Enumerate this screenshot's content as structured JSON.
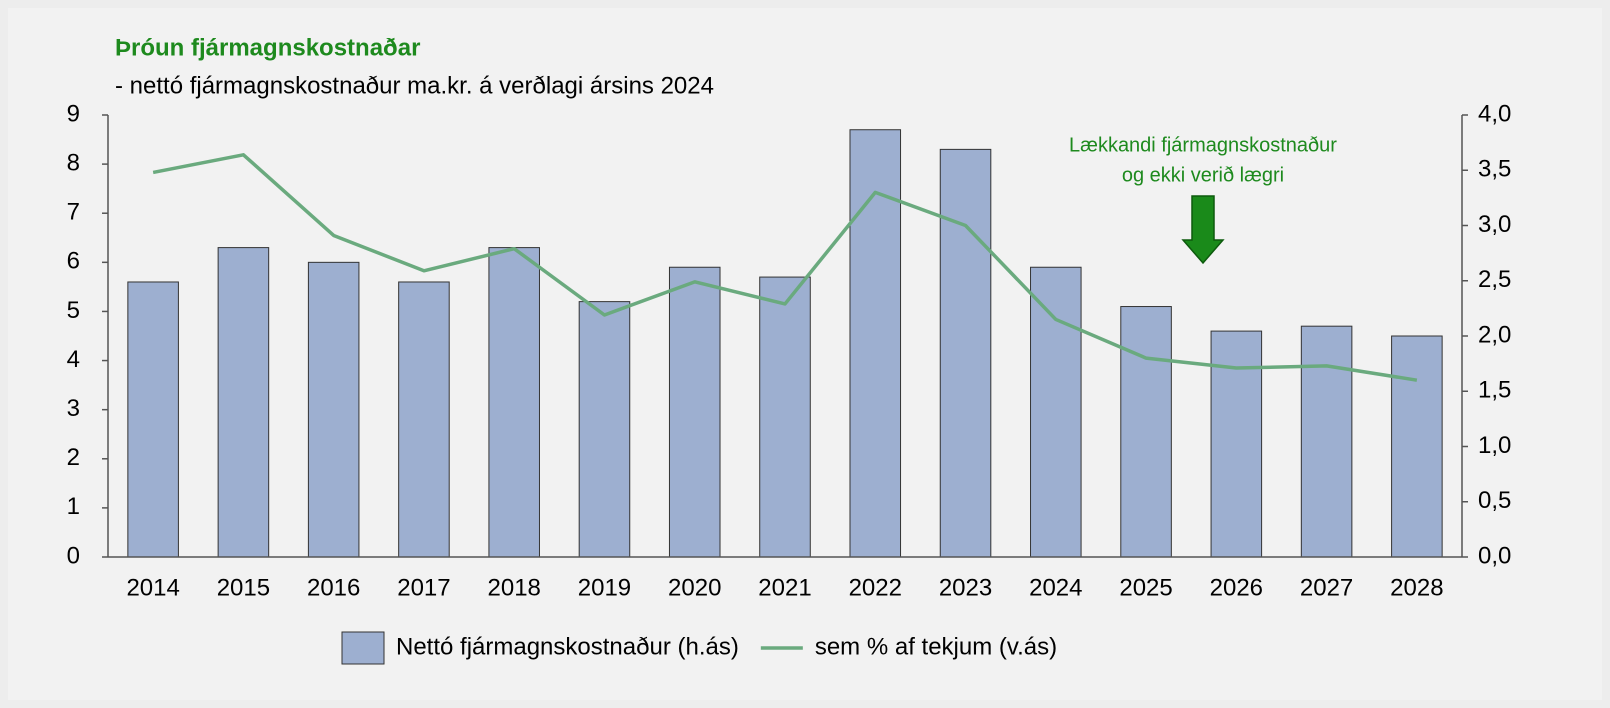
{
  "chart_data": {
    "type": "bar-line",
    "title": "Þróun fjármagnskostnaðar",
    "subtitle": "- nettó fjármagnskostnaður ma.kr. á verðlagi ársins 2024",
    "annotation": [
      "Lækkandi fjármagnskostnaður",
      "og ekki verið lægri"
    ],
    "categories": [
      "2014",
      "2015",
      "2016",
      "2017",
      "2018",
      "2019",
      "2020",
      "2021",
      "2022",
      "2023",
      "2024",
      "2025",
      "2026",
      "2027",
      "2028"
    ],
    "series": [
      {
        "name": "Nettó fjármagnskostnaður (h.ás)",
        "type": "bar",
        "color": "#9dafd0",
        "values": [
          5.6,
          6.3,
          6.0,
          5.6,
          6.3,
          5.2,
          5.9,
          5.7,
          8.7,
          8.3,
          5.9,
          5.1,
          4.6,
          4.7,
          4.5
        ]
      },
      {
        "name": "sem % af tekjum (v.ás)",
        "type": "line",
        "color": "#6aaa7e",
        "axis": "y2",
        "values": [
          3.48,
          3.64,
          2.91,
          2.59,
          2.79,
          2.19,
          2.49,
          2.29,
          3.3,
          3.0,
          2.15,
          1.8,
          1.71,
          1.73,
          1.6
        ]
      }
    ],
    "ylim": [
      0,
      9
    ],
    "yticks": [
      0,
      1,
      2,
      3,
      4,
      5,
      6,
      7,
      8,
      9
    ],
    "y2lim": [
      0,
      4
    ],
    "y2ticks": [
      {
        "value": 0,
        "label": "0,0"
      },
      {
        "value": 0.5,
        "label": "0,5"
      },
      {
        "value": 1,
        "label": "1,0"
      },
      {
        "value": 1.5,
        "label": "1,5"
      },
      {
        "value": 2,
        "label": "2,0"
      },
      {
        "value": 2.5,
        "label": "2,5"
      },
      {
        "value": 3,
        "label": "3,0"
      },
      {
        "value": 3.5,
        "label": "3,5"
      },
      {
        "value": 4,
        "label": "4,0"
      }
    ],
    "grid": false,
    "legend": "bottom"
  }
}
